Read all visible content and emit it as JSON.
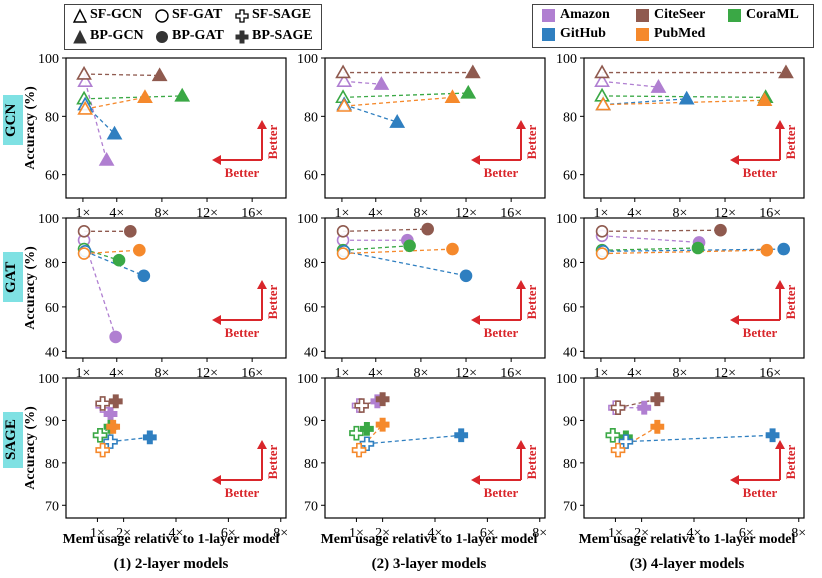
{
  "legend_methods": {
    "items": [
      {
        "label": "SF-GCN",
        "marker": "triangle",
        "fill": "open"
      },
      {
        "label": "SF-GAT",
        "marker": "circle",
        "fill": "open"
      },
      {
        "label": "SF-SAGE",
        "marker": "plus",
        "fill": "open"
      },
      {
        "label": "BP-GCN",
        "marker": "triangle",
        "fill": "solid"
      },
      {
        "label": "BP-GAT",
        "marker": "circle",
        "fill": "solid"
      },
      {
        "label": "BP-SAGE",
        "marker": "plus",
        "fill": "solid"
      }
    ]
  },
  "legend_datasets": {
    "items": [
      {
        "label": "Amazon",
        "color": "#b07fd1"
      },
      {
        "label": "CiteSeer",
        "color": "#8f5a4f"
      },
      {
        "label": "CoraML",
        "color": "#3aa845"
      },
      {
        "label": "GitHub",
        "color": "#2f7fc0"
      },
      {
        "label": "PubMed",
        "color": "#f5892c"
      }
    ]
  },
  "row_labels": [
    "GCN",
    "GAT",
    "SAGE"
  ],
  "col_titles": [
    "(1) 2-layer models",
    "(2) 3-layer models",
    "(3) 4-layer models"
  ],
  "xlabel": "Mem usage relative to 1-layer model",
  "ylabel": "Accuracy (%)",
  "better_label": "Better",
  "chart_data": {
    "type": "scatter",
    "dataset_colors": {
      "Amazon": "#b07fd1",
      "CiteSeer": "#8f5a4f",
      "CoraML": "#3aa845",
      "GitHub": "#2f7fc0",
      "PubMed": "#f5892c"
    },
    "panels": [
      {
        "row": "GCN",
        "col": "2-layer",
        "xlim": [
          -0.5,
          19
        ],
        "xticks": [
          1,
          4,
          8,
          12,
          16
        ],
        "xtick_labels": [
          "1×",
          "4×",
          "8×",
          "12×",
          "16×"
        ],
        "ylim": [
          52,
          100
        ],
        "yticks": [
          60,
          80,
          100
        ],
        "marker": "triangle",
        "points": [
          {
            "dataset": "Amazon",
            "sf": [
              1.2,
              92
            ],
            "bp": [
              3.1,
              65
            ]
          },
          {
            "dataset": "CiteSeer",
            "sf": [
              1.1,
              94.5
            ],
            "bp": [
              7.8,
              94
            ]
          },
          {
            "dataset": "CoraML",
            "sf": [
              1.1,
              86
            ],
            "bp": [
              9.8,
              87
            ]
          },
          {
            "dataset": "GitHub",
            "sf": [
              1.2,
              84
            ],
            "bp": [
              3.8,
              74
            ]
          },
          {
            "dataset": "PubMed",
            "sf": [
              1.2,
              82.5
            ],
            "bp": [
              6.5,
              86.5
            ]
          }
        ]
      },
      {
        "row": "GCN",
        "col": "3-layer",
        "xlim": [
          -0.5,
          19
        ],
        "xticks": [
          1,
          4,
          8,
          12,
          16
        ],
        "xtick_labels": [
          "1×",
          "4×",
          "8×",
          "12×",
          "16×"
        ],
        "ylim": [
          52,
          100
        ],
        "yticks": [
          60,
          80,
          100
        ],
        "marker": "triangle",
        "points": [
          {
            "dataset": "Amazon",
            "sf": [
              1.2,
              92
            ],
            "bp": [
              4.5,
              91
            ]
          },
          {
            "dataset": "CiteSeer",
            "sf": [
              1.1,
              95
            ],
            "bp": [
              12.6,
              95
            ]
          },
          {
            "dataset": "CoraML",
            "sf": [
              1.1,
              86.5
            ],
            "bp": [
              12.2,
              88
            ]
          },
          {
            "dataset": "GitHub",
            "sf": [
              1.2,
              84
            ],
            "bp": [
              5.9,
              78
            ]
          },
          {
            "dataset": "PubMed",
            "sf": [
              1.2,
              83.5
            ],
            "bp": [
              10.8,
              86.5
            ]
          }
        ]
      },
      {
        "row": "GCN",
        "col": "4-layer",
        "xlim": [
          -0.5,
          19
        ],
        "xticks": [
          1,
          4,
          8,
          12,
          16
        ],
        "xtick_labels": [
          "1×",
          "4×",
          "8×",
          "12×",
          "16×"
        ],
        "ylim": [
          52,
          100
        ],
        "yticks": [
          60,
          80,
          100
        ],
        "marker": "triangle",
        "points": [
          {
            "dataset": "Amazon",
            "sf": [
              1.1,
              92
            ],
            "bp": [
              6.1,
              90
            ]
          },
          {
            "dataset": "CiteSeer",
            "sf": [
              1.1,
              95
            ],
            "bp": [
              17.4,
              95
            ]
          },
          {
            "dataset": "CoraML",
            "sf": [
              1.1,
              87
            ],
            "bp": [
              15.6,
              86.5
            ]
          },
          {
            "dataset": "GitHub",
            "sf": [
              1.2,
              84
            ],
            "bp": [
              8.6,
              86
            ]
          },
          {
            "dataset": "PubMed",
            "sf": [
              1.2,
              84
            ],
            "bp": [
              15.5,
              85.5
            ]
          }
        ]
      },
      {
        "row": "GAT",
        "col": "2-layer",
        "xlim": [
          -0.5,
          19
        ],
        "xticks": [
          1,
          4,
          8,
          12,
          16
        ],
        "xtick_labels": [
          "1×",
          "4×",
          "8×",
          "12×",
          "16×"
        ],
        "ylim": [
          37,
          100
        ],
        "yticks": [
          40,
          60,
          80,
          100
        ],
        "marker": "circle",
        "points": [
          {
            "dataset": "Amazon",
            "sf": [
              1.1,
              90
            ],
            "bp": [
              3.9,
              46.5
            ]
          },
          {
            "dataset": "CiteSeer",
            "sf": [
              1.1,
              94
            ],
            "bp": [
              5.2,
              94
            ]
          },
          {
            "dataset": "CoraML",
            "sf": [
              1.1,
              86
            ],
            "bp": [
              4.2,
              81
            ]
          },
          {
            "dataset": "GitHub",
            "sf": [
              1.2,
              85
            ],
            "bp": [
              6.4,
              74
            ]
          },
          {
            "dataset": "PubMed",
            "sf": [
              1.1,
              84
            ],
            "bp": [
              6.0,
              85.5
            ]
          }
        ]
      },
      {
        "row": "GAT",
        "col": "3-layer",
        "xlim": [
          -0.5,
          19
        ],
        "xticks": [
          1,
          4,
          8,
          12,
          16
        ],
        "xtick_labels": [
          "1×",
          "4×",
          "8×",
          "12×",
          "16×"
        ],
        "ylim": [
          37,
          100
        ],
        "yticks": [
          40,
          60,
          80,
          100
        ],
        "marker": "circle",
        "points": [
          {
            "dataset": "Amazon",
            "sf": [
              1.1,
              90
            ],
            "bp": [
              6.8,
              90
            ]
          },
          {
            "dataset": "CiteSeer",
            "sf": [
              1.1,
              94
            ],
            "bp": [
              8.6,
              95
            ]
          },
          {
            "dataset": "CoraML",
            "sf": [
              1.1,
              85.5
            ],
            "bp": [
              7.0,
              87.5
            ]
          },
          {
            "dataset": "GitHub",
            "sf": [
              1.2,
              85
            ],
            "bp": [
              12.0,
              74
            ]
          },
          {
            "dataset": "PubMed",
            "sf": [
              1.1,
              84
            ],
            "bp": [
              10.8,
              86
            ]
          }
        ]
      },
      {
        "row": "GAT",
        "col": "4-layer",
        "xlim": [
          -0.5,
          19
        ],
        "xticks": [
          1,
          4,
          8,
          12,
          16
        ],
        "xtick_labels": [
          "1×",
          "4×",
          "8×",
          "12×",
          "16×"
        ],
        "ylim": [
          37,
          100
        ],
        "yticks": [
          40,
          60,
          80,
          100
        ],
        "marker": "circle",
        "points": [
          {
            "dataset": "Amazon",
            "sf": [
              1.1,
              92
            ],
            "bp": [
              9.7,
              89
            ]
          },
          {
            "dataset": "CiteSeer",
            "sf": [
              1.1,
              94
            ],
            "bp": [
              11.6,
              94.5
            ]
          },
          {
            "dataset": "CoraML",
            "sf": [
              1.1,
              85.5
            ],
            "bp": [
              9.6,
              86.5
            ]
          },
          {
            "dataset": "GitHub",
            "sf": [
              1.2,
              85
            ],
            "bp": [
              17.2,
              86
            ]
          },
          {
            "dataset": "PubMed",
            "sf": [
              1.1,
              84
            ],
            "bp": [
              15.7,
              85.5
            ]
          }
        ]
      },
      {
        "row": "SAGE",
        "col": "2-layer",
        "xlim": [
          -0.2,
          8.2
        ],
        "xticks": [
          1,
          2,
          4,
          6,
          8
        ],
        "xtick_labels": [
          "1×",
          "2×",
          "4×",
          "6×",
          "8×"
        ],
        "ylim": [
          67,
          100
        ],
        "yticks": [
          70,
          80,
          90,
          100
        ],
        "marker": "plus",
        "points": [
          {
            "dataset": "Amazon",
            "sf": [
              1.2,
              93.5
            ],
            "bp": [
              1.5,
              91.5
            ]
          },
          {
            "dataset": "CiteSeer",
            "sf": [
              1.2,
              94
            ],
            "bp": [
              1.7,
              94.5
            ]
          },
          {
            "dataset": "CoraML",
            "sf": [
              1.1,
              86.5
            ],
            "bp": [
              1.5,
              88.5
            ]
          },
          {
            "dataset": "GitHub",
            "sf": [
              1.5,
              85
            ],
            "bp": [
              3.0,
              86
            ]
          },
          {
            "dataset": "PubMed",
            "sf": [
              1.2,
              83
            ],
            "bp": [
              1.6,
              88.5
            ]
          }
        ]
      },
      {
        "row": "SAGE",
        "col": "3-layer",
        "xlim": [
          -0.2,
          8.2
        ],
        "xticks": [
          1,
          2,
          4,
          6,
          8
        ],
        "xtick_labels": [
          "1×",
          "2×",
          "4×",
          "6×",
          "8×"
        ],
        "ylim": [
          67,
          100
        ],
        "yticks": [
          70,
          80,
          90,
          100
        ],
        "marker": "plus",
        "points": [
          {
            "dataset": "Amazon",
            "sf": [
              1.1,
              93.5
            ],
            "bp": [
              1.8,
              94.5
            ]
          },
          {
            "dataset": "CiteSeer",
            "sf": [
              1.2,
              93.5
            ],
            "bp": [
              2.0,
              95
            ]
          },
          {
            "dataset": "CoraML",
            "sf": [
              1.0,
              87
            ],
            "bp": [
              1.4,
              88
            ]
          },
          {
            "dataset": "GitHub",
            "sf": [
              1.4,
              84.5
            ],
            "bp": [
              5.0,
              86.5
            ]
          },
          {
            "dataset": "PubMed",
            "sf": [
              1.1,
              83
            ],
            "bp": [
              2.0,
              89
            ]
          }
        ]
      },
      {
        "row": "SAGE",
        "col": "4-layer",
        "xlim": [
          -0.2,
          8.2
        ],
        "xticks": [
          1,
          2,
          4,
          6,
          8
        ],
        "xtick_labels": [
          "1×",
          "2×",
          "4×",
          "6×",
          "8×"
        ],
        "ylim": [
          67,
          100
        ],
        "yticks": [
          70,
          80,
          90,
          100
        ],
        "marker": "plus",
        "points": [
          {
            "dataset": "Amazon",
            "sf": [
              1.0,
              93
            ],
            "bp": [
              2.1,
              93
            ]
          },
          {
            "dataset": "CiteSeer",
            "sf": [
              1.1,
              93
            ],
            "bp": [
              2.6,
              95
            ]
          },
          {
            "dataset": "CoraML",
            "sf": [
              0.9,
              86.5
            ],
            "bp": [
              1.4,
              86
            ]
          },
          {
            "dataset": "GitHub",
            "sf": [
              1.4,
              85
            ],
            "bp": [
              7.0,
              86.5
            ]
          },
          {
            "dataset": "PubMed",
            "sf": [
              1.1,
              83
            ],
            "bp": [
              2.6,
              88.5
            ]
          }
        ]
      }
    ]
  }
}
